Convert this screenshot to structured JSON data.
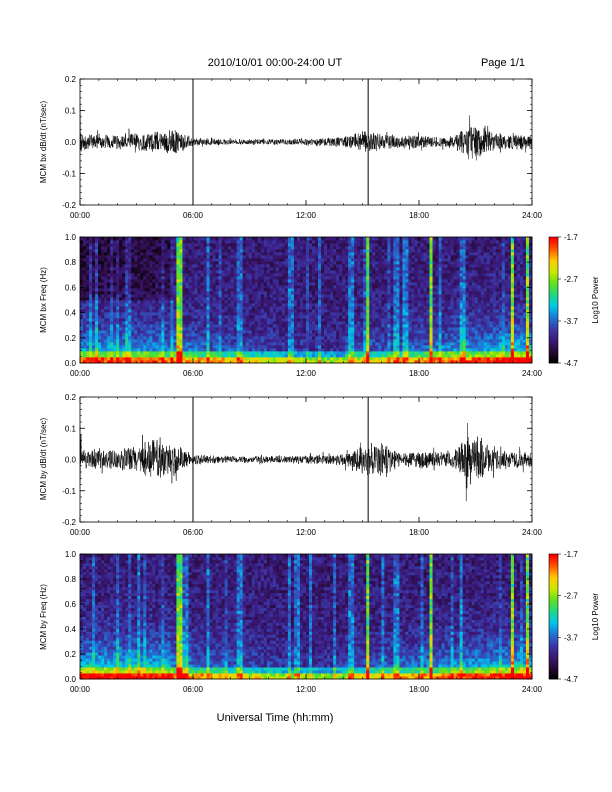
{
  "header": {
    "date_range": "2010/10/01  00:00-24:00 UT",
    "page": "Page 1/1"
  },
  "colors": {
    "trace": "#000000",
    "colormap": [
      "#000000",
      "#2a0a3a",
      "#3a1a7a",
      "#3b3aaa",
      "#1e78d8",
      "#00c8e8",
      "#20d880",
      "#60e020",
      "#c8e800",
      "#ffcc00",
      "#ff5a00",
      "#ff0000"
    ]
  },
  "chart_data": [
    {
      "type": "line",
      "ylabel": "MCM bx dB/dt (nT/sec)",
      "xlim": [
        0,
        24
      ],
      "ylim": [
        -0.2,
        0.2
      ],
      "x_ticks": [
        "00:00",
        "06:00",
        "12:00",
        "18:00",
        "24:00"
      ],
      "y_ticks": [
        "-0.2",
        "-0.1",
        "0.0",
        "0.1",
        "0.2"
      ],
      "markers_hours": [
        6.0,
        15.3
      ],
      "envelope_profile": {
        "hours": [
          0,
          1,
          2,
          3,
          4,
          5,
          6,
          8,
          10,
          12,
          14,
          15,
          16,
          17,
          18,
          19,
          20,
          20.5,
          21,
          21.5,
          22,
          23,
          24
        ],
        "amplitude": [
          0.025,
          0.02,
          0.022,
          0.025,
          0.028,
          0.035,
          0.012,
          0.008,
          0.008,
          0.01,
          0.015,
          0.03,
          0.025,
          0.018,
          0.02,
          0.015,
          0.02,
          0.045,
          0.055,
          0.04,
          0.025,
          0.022,
          0.02
        ]
      }
    },
    {
      "type": "heatmap",
      "ylabel": "MCM bx Freq (Hz)",
      "xlim": [
        0,
        24
      ],
      "ylim": [
        0.0,
        1.0
      ],
      "x_ticks": [
        "00:00",
        "06:00",
        "12:00",
        "18:00",
        "24:00"
      ],
      "y_ticks": [
        "0.0",
        "0.2",
        "0.4",
        "0.6",
        "0.8",
        "1.0"
      ],
      "colorbar": {
        "label": "Log10 Power",
        "range": [
          -4.7,
          -1.7
        ],
        "ticks": [
          "-1.7",
          "-2.7",
          "-3.7",
          "-4.7"
        ]
      },
      "bright_lines_hours": [
        5.3,
        15.3,
        18.7,
        22.9,
        23.8
      ],
      "faint_lines_hours": [
        6.8,
        8.5,
        11.1,
        14.4,
        16.8,
        20.2
      ]
    },
    {
      "type": "line",
      "ylabel": "MCM by dB/dt (nT/sec)",
      "xlim": [
        0,
        24
      ],
      "ylim": [
        -0.2,
        0.2
      ],
      "x_ticks": [
        "00:00",
        "06:00",
        "12:00",
        "18:00",
        "24:00"
      ],
      "y_ticks": [
        "-0.2",
        "-0.1",
        "0.0",
        "0.1",
        "0.2"
      ],
      "markers_hours": [
        6.0,
        15.3
      ],
      "envelope_profile": {
        "hours": [
          0,
          1,
          2,
          3,
          4,
          5,
          6,
          8,
          10,
          12,
          14,
          15,
          16,
          17,
          18,
          19,
          20,
          20.5,
          21,
          21.5,
          22,
          23,
          24
        ],
        "amplitude": [
          0.03,
          0.025,
          0.03,
          0.04,
          0.06,
          0.045,
          0.015,
          0.01,
          0.01,
          0.012,
          0.018,
          0.04,
          0.05,
          0.02,
          0.025,
          0.02,
          0.03,
          0.07,
          0.08,
          0.05,
          0.03,
          0.025,
          0.02
        ]
      }
    },
    {
      "type": "heatmap",
      "ylabel": "MCM by Freq (Hz)",
      "xlim": [
        0,
        24
      ],
      "ylim": [
        0.0,
        1.0
      ],
      "x_ticks": [
        "00:00",
        "06:00",
        "12:00",
        "18:00",
        "24:00"
      ],
      "y_ticks": [
        "0.0",
        "0.2",
        "0.4",
        "0.6",
        "0.8",
        "1.0"
      ],
      "colorbar": {
        "label": "Log10 Power",
        "range": [
          -4.7,
          -1.7
        ],
        "ticks": [
          "-1.7",
          "-2.7",
          "-3.7",
          "-4.7"
        ]
      },
      "bright_lines_hours": [
        5.3,
        15.3,
        18.7,
        22.9,
        23.8
      ],
      "faint_lines_hours": [
        6.8,
        8.5,
        11.1,
        14.4,
        16.8,
        20.2
      ]
    }
  ],
  "xlabel": "Universal Time (hh:mm)"
}
